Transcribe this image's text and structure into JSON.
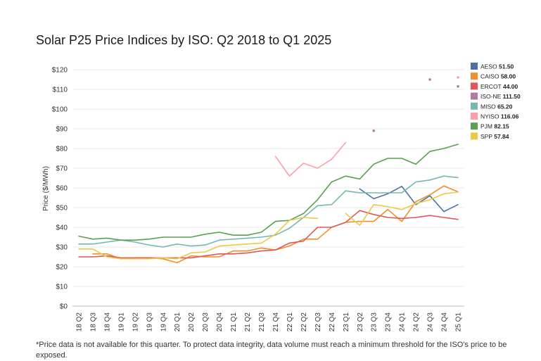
{
  "page": {
    "title": "Solar P25 Price Indices by ISO: Q2 2018 to Q1 2025",
    "footnote": "*Price data is not available for this quarter. To protect data integrity, data volume must reach a minimum threshold for the ISO's price to be exposed."
  },
  "chart_data": {
    "type": "line",
    "title": "Solar P25 Price Indices by ISO: Q2 2018 to Q1 2025",
    "xlabel": "",
    "ylabel": "Price ($/MWh)",
    "ylim": [
      0,
      120
    ],
    "yticks": [
      0,
      10,
      20,
      30,
      40,
      50,
      60,
      70,
      80,
      90,
      100,
      110,
      120
    ],
    "ytick_labels": [
      "$0",
      "$10",
      "$20",
      "$30",
      "$40",
      "$50",
      "$60",
      "$70",
      "$80",
      "$90",
      "$100",
      "$110",
      "$120"
    ],
    "grid": "horizontal",
    "legend_position": "right",
    "categories": [
      "18 Q2",
      "18 Q3",
      "18 Q4",
      "19 Q1",
      "19 Q2",
      "19 Q3",
      "19 Q4",
      "20 Q1",
      "20 Q2",
      "20 Q3",
      "20 Q4",
      "21 Q1",
      "21 Q2",
      "21 Q3",
      "21 Q4",
      "22 Q1",
      "22 Q2",
      "22 Q3",
      "22 Q4",
      "23 Q1",
      "23 Q2",
      "23 Q3",
      "23 Q4",
      "24 Q1",
      "24 Q2",
      "24 Q3",
      "24 Q4",
      "25 Q1"
    ],
    "series": [
      {
        "name": "AESO",
        "legend_value": "51.50",
        "color": "#4a72a6",
        "values": [
          null,
          null,
          null,
          null,
          null,
          null,
          null,
          null,
          null,
          null,
          null,
          null,
          null,
          null,
          null,
          null,
          null,
          null,
          null,
          null,
          59.5,
          54.5,
          57,
          60.8,
          51.5,
          56,
          48,
          51.5
        ]
      },
      {
        "name": "CAISO",
        "legend_value": "58.00",
        "color": "#f28e2b",
        "values": [
          null,
          26.5,
          26.5,
          24,
          24.5,
          24.5,
          24,
          22,
          25.5,
          25,
          25,
          28,
          28,
          29.5,
          28.5,
          30.5,
          34,
          34,
          40,
          42.5,
          43,
          43,
          49,
          43,
          53,
          56.5,
          61,
          58
        ]
      },
      {
        "name": "ERCOT",
        "legend_value": "44.00",
        "color": "#e15759",
        "values": [
          25,
          25,
          25.5,
          24.5,
          24.5,
          24.5,
          24.5,
          24.5,
          24.5,
          25.5,
          26.5,
          26.5,
          27,
          28,
          28.5,
          32,
          33,
          40,
          40,
          42.5,
          48.5,
          46.5,
          45,
          44.5,
          45,
          46,
          45,
          44
        ]
      },
      {
        "name": "ISO-NE",
        "legend_value": "111.50",
        "color": "#b07aa1",
        "values": [
          null,
          null,
          null,
          null,
          null,
          null,
          null,
          null,
          null,
          null,
          null,
          null,
          null,
          null,
          null,
          null,
          null,
          null,
          null,
          null,
          null,
          89,
          null,
          null,
          null,
          115,
          null,
          111.5
        ]
      },
      {
        "name": "MISO",
        "legend_value": "65.20",
        "color": "#76b7b2",
        "values": [
          31.5,
          31.5,
          32.5,
          33.5,
          32.5,
          31,
          30,
          31.5,
          30.5,
          31,
          33.5,
          34,
          34.5,
          35,
          36,
          39.5,
          45,
          51,
          51.5,
          58.5,
          57.5,
          57.5,
          57.5,
          57.5,
          63,
          64,
          66,
          65.2
        ]
      },
      {
        "name": "NYISO",
        "legend_value": "116.06",
        "color": "#ff9da7",
        "values": [
          null,
          null,
          null,
          null,
          null,
          null,
          null,
          null,
          null,
          null,
          null,
          null,
          null,
          null,
          76,
          66,
          72.5,
          70,
          74.5,
          83,
          null,
          null,
          null,
          null,
          null,
          null,
          null,
          116.06
        ]
      },
      {
        "name": "PJM",
        "legend_value": "82.15",
        "color": "#59a14f",
        "values": [
          35.5,
          34,
          34.5,
          33.5,
          33.5,
          34,
          35,
          35,
          35,
          36.5,
          37.5,
          36,
          36,
          37.5,
          43,
          43.5,
          47,
          54,
          63,
          66,
          64.5,
          72,
          75,
          75,
          72,
          78.5,
          80,
          82.15
        ]
      },
      {
        "name": "SPP",
        "legend_value": "57.84",
        "color": "#edc948",
        "values": [
          29,
          29,
          25,
          24,
          24,
          24,
          24.5,
          24,
          27,
          27.5,
          30.5,
          31,
          31.5,
          32,
          36.5,
          43.5,
          45,
          44.5,
          null,
          47,
          41,
          51.5,
          50.5,
          49,
          52,
          54,
          57,
          57.84
        ]
      }
    ],
    "isolated_marker_note": "Single-quarter values are drawn as dots."
  }
}
